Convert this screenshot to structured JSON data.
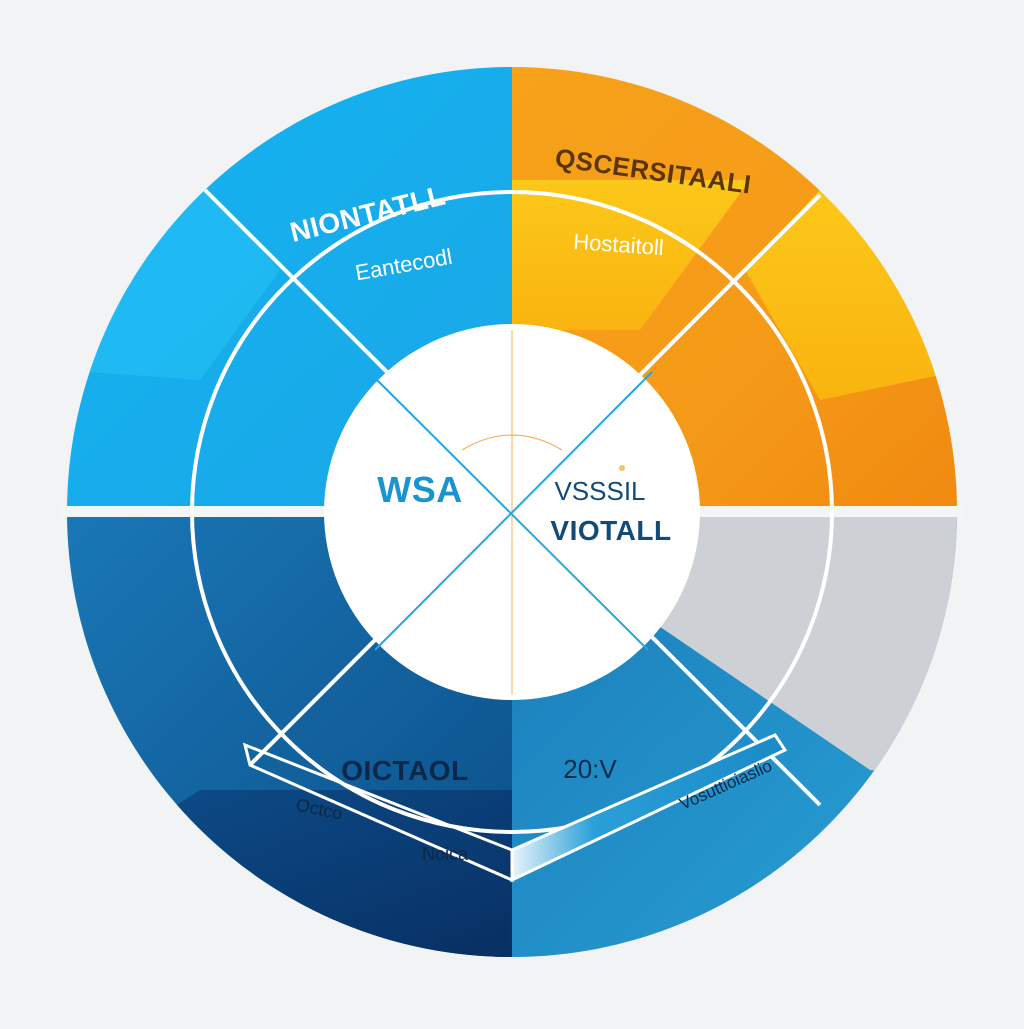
{
  "colors": {
    "background": "#f2f3f5",
    "light_blue": "#18b4f0",
    "orange": "#f49a16",
    "yellow": "#fbc115",
    "grey": "#cfd2d6",
    "dark_blue": "#0e5f9c",
    "mid_blue": "#1e86c2",
    "navy": "#0a3f78",
    "white": "#ffffff",
    "center_text_blue": "#1894d0",
    "center_text_navy": "#124a7a"
  },
  "quadrants": {
    "top_left": {
      "title": "NIONTATLL",
      "subtitle": "Eantecodl"
    },
    "top_right": {
      "title": "QSCERSITAALI",
      "subtitle": "Hostaitoll"
    },
    "bottom_left": {
      "title": "OICTAOL",
      "band_left": "Octco",
      "band_right": "Noica"
    },
    "bottom_right": {
      "title": "20:V",
      "band": "Vosuttioiaslio"
    }
  },
  "center": {
    "left_label": "WSA",
    "right_label_line1": "VSSSIL",
    "right_label_line2": "VIOTALL"
  }
}
